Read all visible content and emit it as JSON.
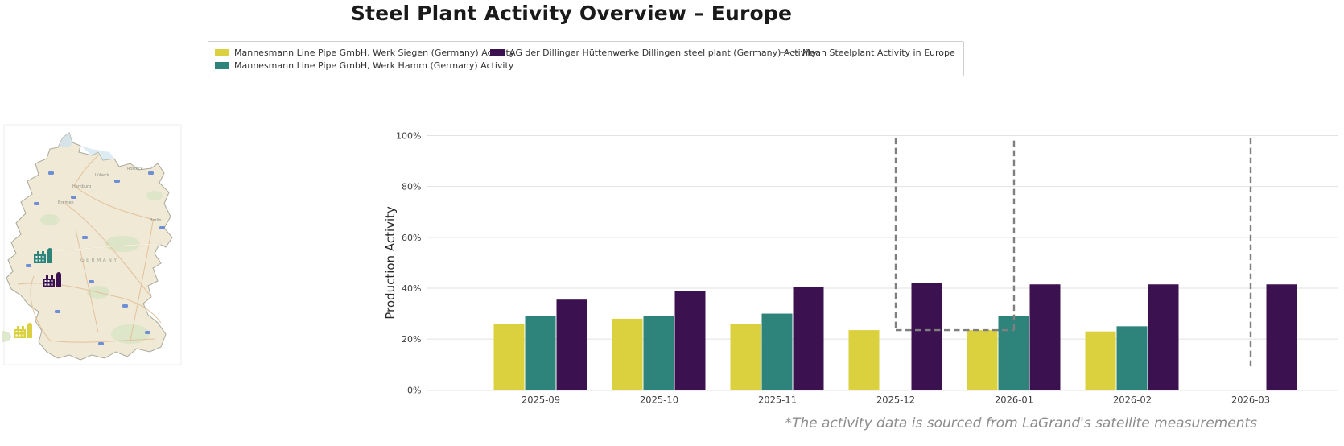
{
  "title": "Steel Plant Activity Overview – Europe",
  "footnote": "*The activity data is sourced from LaGrand's satellite measurements",
  "legend": {
    "items": [
      {
        "label": "Mannesmann Line Pipe GmbH, Werk Siegen (Germany) Activity",
        "color": "#dbd03d",
        "swatch": "box"
      },
      {
        "label": "Mannesmann Line Pipe GmbH, Werk Hamm (Germany) Activity",
        "color": "#2e837b",
        "swatch": "box"
      },
      {
        "label": "AG der Dillinger Hüttenwerke Dillingen steel plant (Germany) Activity",
        "color": "#3c1150",
        "swatch": "box"
      },
      {
        "label": "Mean Steelplant Activity in Europe",
        "color": "#7f7f7f",
        "swatch": "dashed-line"
      }
    ]
  },
  "map": {
    "country_label": "GERMANY",
    "cities": [
      "Hamburg",
      "Lübeck",
      "Rostock",
      "Bremen",
      "Berlin"
    ],
    "plant_markers": [
      {
        "color_name": "teal",
        "color": "#2e837b"
      },
      {
        "color_name": "purple",
        "color": "#3c1150"
      },
      {
        "color_name": "yellow",
        "color": "#dbd03d"
      }
    ]
  },
  "chart_data": {
    "type": "bar",
    "title": "",
    "xlabel": "",
    "ylabel": "Production Activity",
    "ylim": [
      0,
      100
    ],
    "grid": true,
    "yticks": [
      "0%",
      "20%",
      "40%",
      "60%",
      "80%",
      "100%"
    ],
    "ytick_values": [
      0,
      20,
      40,
      60,
      80,
      100
    ],
    "categories": [
      "2025-09",
      "2025-10",
      "2025-11",
      "2025-12",
      "2026-01",
      "2026-02",
      "2026-03"
    ],
    "series": [
      {
        "name": "Mannesmann Line Pipe GmbH, Werk Siegen (Germany) Activity",
        "color": "#dbd03d",
        "values": [
          26,
          28,
          26,
          23.5,
          23.5,
          23,
          null
        ]
      },
      {
        "name": "Mannesmann Line Pipe GmbH, Werk Hamm (Germany) Activity",
        "color": "#2e837b",
        "values": [
          29,
          29,
          30,
          null,
          29,
          25,
          null
        ]
      },
      {
        "name": "AG der Dillinger Hüttenwerke Dillingen steel plant (Germany) Activity",
        "color": "#3c1150",
        "values": [
          35.5,
          39,
          40.5,
          42,
          41.5,
          41.5,
          41.5
        ]
      }
    ],
    "mean_line": {
      "name": "Mean Steelplant Activity in Europe",
      "color": "#7f7f7f",
      "style": "dashed",
      "segments": [
        {
          "kind": "vertical",
          "x": "2025-12",
          "y_from": 99,
          "y_to": 23.5
        },
        {
          "kind": "horizontal",
          "x_from": "2025-12",
          "x_to": "2026-01",
          "y": 23.5
        },
        {
          "kind": "vertical",
          "x": "2026-01",
          "y_from": 23.5,
          "y_to": 99
        },
        {
          "kind": "vertical",
          "x": "2026-03",
          "y_from": 99,
          "y_to": 8.5
        }
      ]
    }
  }
}
